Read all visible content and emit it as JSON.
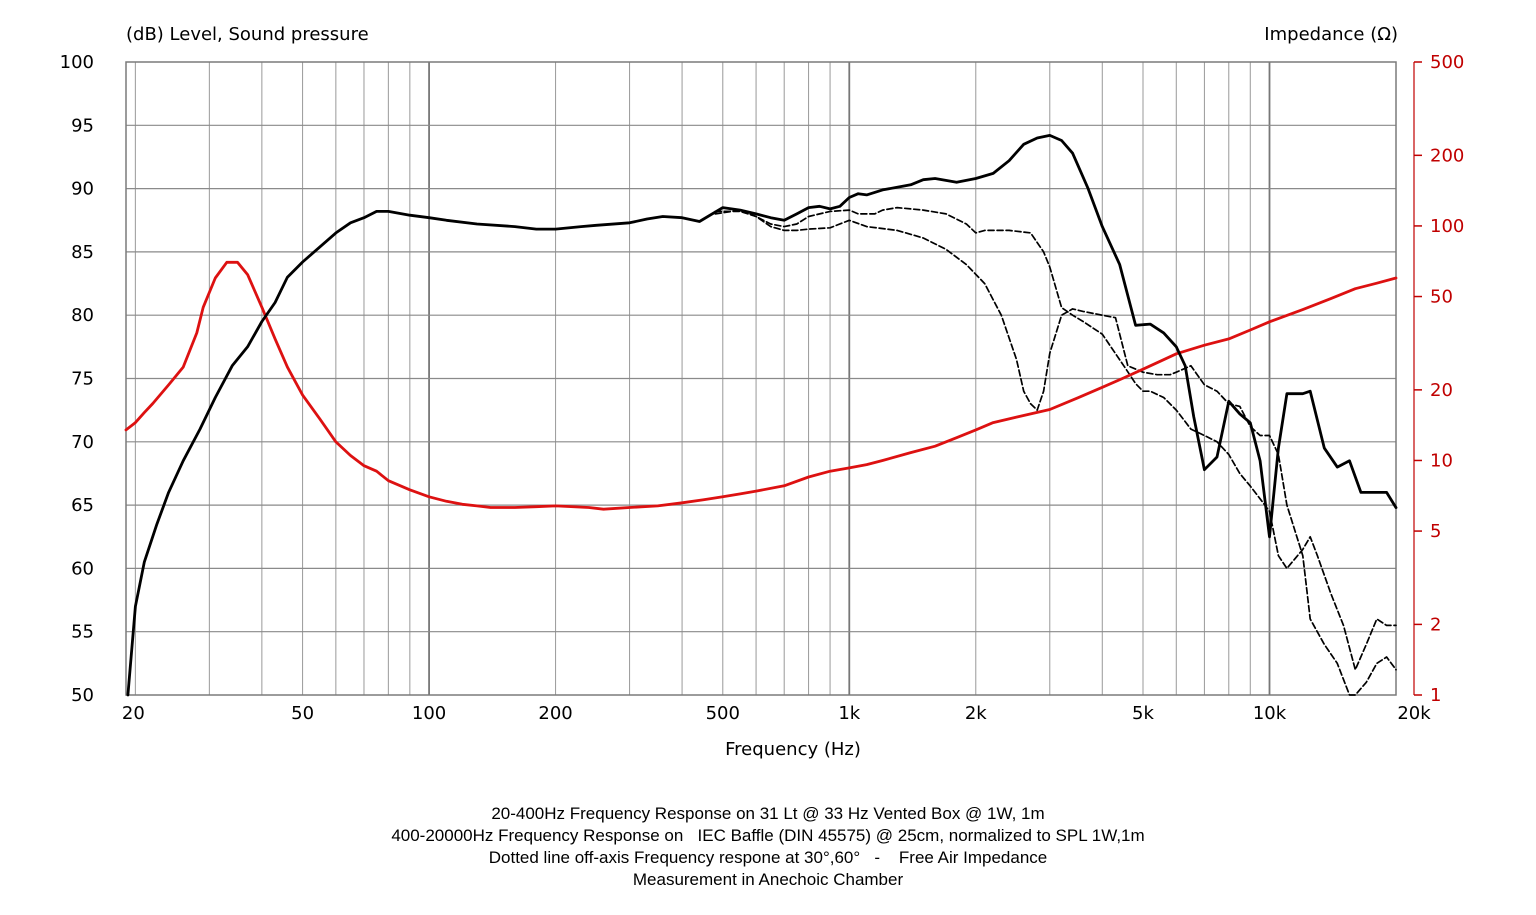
{
  "chart_data": {
    "type": "line",
    "left_axis_title": "(dB)  Level, Sound pressure",
    "right_axis_title": "Impedance  (Ω)",
    "xlabel": "Frequency  (Hz)",
    "x_scale": "log",
    "xlim": [
      19,
      20000
    ],
    "ylim_left": [
      50,
      100
    ],
    "ylim_right": [
      1,
      500
    ],
    "y_right_scale": "log",
    "grid": true,
    "left_ticks": [
      "100",
      "95",
      "90",
      "85",
      "80",
      "75",
      "70",
      "65",
      "60",
      "55",
      "50"
    ],
    "left_tick_values": [
      100,
      95,
      90,
      85,
      80,
      75,
      70,
      65,
      60,
      55,
      50
    ],
    "right_ticks": [
      "500",
      "200",
      "100",
      "50",
      "20",
      "10",
      "5",
      "2",
      "1"
    ],
    "right_tick_values": [
      500,
      200,
      100,
      50,
      20,
      10,
      5,
      2,
      1
    ],
    "x_ticks": [
      "20",
      "50",
      "100",
      "200",
      "500",
      "1k",
      "2k",
      "5k",
      "10k",
      "20k"
    ],
    "x_tick_values": [
      20,
      50,
      100,
      200,
      500,
      1000,
      2000,
      5000,
      10000,
      20000
    ],
    "colors": {
      "spl": "#000000",
      "impedance": "#dd1111",
      "grid": "#999999"
    },
    "series": [
      {
        "key": "spl_on_axis",
        "axis": "left",
        "style": "solid",
        "color": "#000000",
        "points": [
          [
            19.2,
            50
          ],
          [
            20,
            57
          ],
          [
            21,
            60.5
          ],
          [
            22.5,
            63.5
          ],
          [
            24,
            66
          ],
          [
            26,
            68.5
          ],
          [
            28.5,
            71
          ],
          [
            31,
            73.5
          ],
          [
            34,
            76
          ],
          [
            37,
            77.5
          ],
          [
            40,
            79.5
          ],
          [
            43,
            81
          ],
          [
            46,
            83
          ],
          [
            50,
            84.2
          ],
          [
            55,
            85.4
          ],
          [
            60,
            86.5
          ],
          [
            65,
            87.3
          ],
          [
            70,
            87.7
          ],
          [
            75,
            88.2
          ],
          [
            80,
            88.2
          ],
          [
            90,
            87.9
          ],
          [
            100,
            87.7
          ],
          [
            110,
            87.5
          ],
          [
            130,
            87.2
          ],
          [
            160,
            87.0
          ],
          [
            180,
            86.8
          ],
          [
            200,
            86.8
          ],
          [
            230,
            87.0
          ],
          [
            250,
            87.1
          ],
          [
            300,
            87.3
          ],
          [
            330,
            87.6
          ],
          [
            360,
            87.8
          ],
          [
            400,
            87.7
          ],
          [
            440,
            87.4
          ],
          [
            500,
            88.5
          ],
          [
            550,
            88.3
          ],
          [
            600,
            88.0
          ],
          [
            650,
            87.7
          ],
          [
            700,
            87.5
          ],
          [
            750,
            88.0
          ],
          [
            800,
            88.5
          ],
          [
            850,
            88.6
          ],
          [
            900,
            88.4
          ],
          [
            950,
            88.6
          ],
          [
            1000,
            89.3
          ],
          [
            1050,
            89.6
          ],
          [
            1100,
            89.5
          ],
          [
            1200,
            89.9
          ],
          [
            1300,
            90.1
          ],
          [
            1400,
            90.3
          ],
          [
            1500,
            90.7
          ],
          [
            1600,
            90.8
          ],
          [
            1800,
            90.5
          ],
          [
            2000,
            90.8
          ],
          [
            2200,
            91.2
          ],
          [
            2400,
            92.2
          ],
          [
            2600,
            93.5
          ],
          [
            2800,
            94.0
          ],
          [
            3000,
            94.2
          ],
          [
            3200,
            93.8
          ],
          [
            3400,
            92.8
          ],
          [
            3700,
            90.0
          ],
          [
            4000,
            87.0
          ],
          [
            4400,
            84.0
          ],
          [
            4800,
            79.2
          ],
          [
            5200,
            79.3
          ],
          [
            5600,
            78.6
          ],
          [
            6000,
            77.5
          ],
          [
            6300,
            76.0
          ],
          [
            6600,
            72.0
          ],
          [
            7000,
            67.8
          ],
          [
            7500,
            68.8
          ],
          [
            8000,
            73.2
          ],
          [
            8500,
            72.2
          ],
          [
            9000,
            71.5
          ],
          [
            9500,
            68.5
          ],
          [
            10000,
            62.5
          ],
          [
            10500,
            69.5
          ],
          [
            11000,
            73.8
          ],
          [
            12000,
            73.8
          ],
          [
            12500,
            74.0
          ],
          [
            13500,
            69.5
          ],
          [
            14500,
            68.0
          ],
          [
            15500,
            68.5
          ],
          [
            16500,
            66.0
          ],
          [
            18000,
            66.0
          ],
          [
            19000,
            66.0
          ],
          [
            20000,
            64.8
          ]
        ]
      },
      {
        "key": "spl_30deg",
        "axis": "left",
        "style": "dashed",
        "color": "#000000",
        "points": [
          [
            480,
            88.0
          ],
          [
            550,
            88.3
          ],
          [
            600,
            87.8
          ],
          [
            650,
            87.2
          ],
          [
            700,
            87.0
          ],
          [
            750,
            87.2
          ],
          [
            800,
            87.8
          ],
          [
            900,
            88.2
          ],
          [
            1000,
            88.3
          ],
          [
            1050,
            88.0
          ],
          [
            1150,
            88.0
          ],
          [
            1200,
            88.3
          ],
          [
            1300,
            88.5
          ],
          [
            1500,
            88.3
          ],
          [
            1700,
            88.0
          ],
          [
            1900,
            87.2
          ],
          [
            2000,
            86.5
          ],
          [
            2100,
            86.7
          ],
          [
            2400,
            86.7
          ],
          [
            2700,
            86.5
          ],
          [
            2900,
            85.0
          ],
          [
            3000,
            83.8
          ],
          [
            3200,
            80.6
          ],
          [
            3400,
            80.0
          ],
          [
            3600,
            79.5
          ],
          [
            4000,
            78.5
          ],
          [
            4500,
            76.0
          ],
          [
            4800,
            74.6
          ],
          [
            5000,
            74.0
          ],
          [
            5200,
            74.0
          ],
          [
            5600,
            73.5
          ],
          [
            6000,
            72.5
          ],
          [
            6500,
            71.0
          ],
          [
            7000,
            70.5
          ],
          [
            7500,
            70.0
          ],
          [
            8000,
            69.0
          ],
          [
            8500,
            67.5
          ],
          [
            9000,
            66.5
          ],
          [
            9500,
            65.5
          ],
          [
            10000,
            64.5
          ],
          [
            10500,
            61.0
          ],
          [
            11000,
            60.0
          ],
          [
            12000,
            61.5
          ],
          [
            12500,
            62.5
          ],
          [
            13000,
            61.0
          ],
          [
            14000,
            58.0
          ],
          [
            15000,
            55.5
          ],
          [
            16000,
            52.0
          ],
          [
            17000,
            54.0
          ],
          [
            18000,
            56.0
          ],
          [
            19000,
            55.5
          ],
          [
            20000,
            55.5
          ]
        ]
      },
      {
        "key": "spl_60deg",
        "axis": "left",
        "style": "dashed",
        "color": "#000000",
        "points": [
          [
            480,
            88.2
          ],
          [
            550,
            88.2
          ],
          [
            600,
            87.8
          ],
          [
            650,
            87.0
          ],
          [
            700,
            86.7
          ],
          [
            750,
            86.7
          ],
          [
            800,
            86.8
          ],
          [
            900,
            86.9
          ],
          [
            1000,
            87.5
          ],
          [
            1100,
            87.0
          ],
          [
            1300,
            86.7
          ],
          [
            1500,
            86.1
          ],
          [
            1700,
            85.2
          ],
          [
            1900,
            84.0
          ],
          [
            2100,
            82.5
          ],
          [
            2300,
            80.0
          ],
          [
            2500,
            76.5
          ],
          [
            2600,
            74.0
          ],
          [
            2700,
            73.0
          ],
          [
            2800,
            72.5
          ],
          [
            2900,
            74.0
          ],
          [
            3000,
            77.0
          ],
          [
            3200,
            80.0
          ],
          [
            3400,
            80.5
          ],
          [
            3600,
            80.3
          ],
          [
            4000,
            80.0
          ],
          [
            4300,
            79.8
          ],
          [
            4600,
            76.0
          ],
          [
            5000,
            75.5
          ],
          [
            5400,
            75.3
          ],
          [
            5800,
            75.3
          ],
          [
            6000,
            75.5
          ],
          [
            6500,
            76.0
          ],
          [
            7000,
            74.5
          ],
          [
            7500,
            74.0
          ],
          [
            8000,
            73.0
          ],
          [
            8500,
            72.8
          ],
          [
            9000,
            71.2
          ],
          [
            9500,
            70.5
          ],
          [
            10000,
            70.5
          ],
          [
            10500,
            69.0
          ],
          [
            11000,
            65.0
          ],
          [
            12000,
            61.0
          ],
          [
            12500,
            56.0
          ],
          [
            13500,
            54.0
          ],
          [
            14500,
            52.5
          ],
          [
            15500,
            50.0
          ],
          [
            16000,
            50.0
          ],
          [
            17000,
            51.0
          ],
          [
            18000,
            52.5
          ],
          [
            19000,
            53.0
          ],
          [
            20000,
            52.0
          ]
        ]
      },
      {
        "key": "impedance",
        "axis": "right",
        "style": "solid",
        "color": "#dd1111",
        "points": [
          [
            19,
            13.5
          ],
          [
            20,
            14.5
          ],
          [
            21,
            16
          ],
          [
            22,
            17.5
          ],
          [
            24,
            21
          ],
          [
            26,
            25
          ],
          [
            28,
            35
          ],
          [
            29,
            45
          ],
          [
            31,
            60
          ],
          [
            33,
            70
          ],
          [
            35,
            70
          ],
          [
            37,
            62
          ],
          [
            40,
            45
          ],
          [
            43,
            33
          ],
          [
            46,
            25
          ],
          [
            50,
            19
          ],
          [
            55,
            15
          ],
          [
            60,
            12
          ],
          [
            65,
            10.5
          ],
          [
            70,
            9.5
          ],
          [
            75,
            9
          ],
          [
            80,
            8.2
          ],
          [
            90,
            7.5
          ],
          [
            100,
            7
          ],
          [
            110,
            6.7
          ],
          [
            120,
            6.5
          ],
          [
            130,
            6.4
          ],
          [
            140,
            6.3
          ],
          [
            160,
            6.3
          ],
          [
            180,
            6.35
          ],
          [
            200,
            6.4
          ],
          [
            240,
            6.3
          ],
          [
            260,
            6.2
          ],
          [
            300,
            6.3
          ],
          [
            350,
            6.4
          ],
          [
            400,
            6.6
          ],
          [
            450,
            6.8
          ],
          [
            500,
            7.0
          ],
          [
            550,
            7.2
          ],
          [
            600,
            7.4
          ],
          [
            700,
            7.8
          ],
          [
            800,
            8.5
          ],
          [
            900,
            9.0
          ],
          [
            1000,
            9.3
          ],
          [
            1100,
            9.6
          ],
          [
            1200,
            10.0
          ],
          [
            1400,
            10.8
          ],
          [
            1600,
            11.5
          ],
          [
            1800,
            12.5
          ],
          [
            2000,
            13.5
          ],
          [
            2200,
            14.5
          ],
          [
            2500,
            15.3
          ],
          [
            3000,
            16.5
          ],
          [
            3500,
            18.5
          ],
          [
            4000,
            20.5
          ],
          [
            4500,
            22.5
          ],
          [
            5000,
            24.5
          ],
          [
            5500,
            26.5
          ],
          [
            6000,
            28.5
          ],
          [
            7000,
            31
          ],
          [
            8000,
            33
          ],
          [
            9000,
            36
          ],
          [
            10000,
            39
          ],
          [
            12000,
            44
          ],
          [
            14000,
            49
          ],
          [
            16000,
            54
          ],
          [
            18000,
            57
          ],
          [
            20000,
            60
          ]
        ]
      }
    ]
  },
  "caption": {
    "line1": "20-400Hz Frequency Response on 31 Lt @ 33 Hz Vented Box @ 1W, 1m",
    "line2": "400-20000Hz Frequency Response on   IEC Baffle (DIN 45575) @ 25cm, normalized to SPL 1W,1m",
    "line3": "Dotted line off-axis Frequency respone at 30°,60°   -    Free Air Impedance",
    "line4": "Measurement in Anechoic Chamber"
  }
}
